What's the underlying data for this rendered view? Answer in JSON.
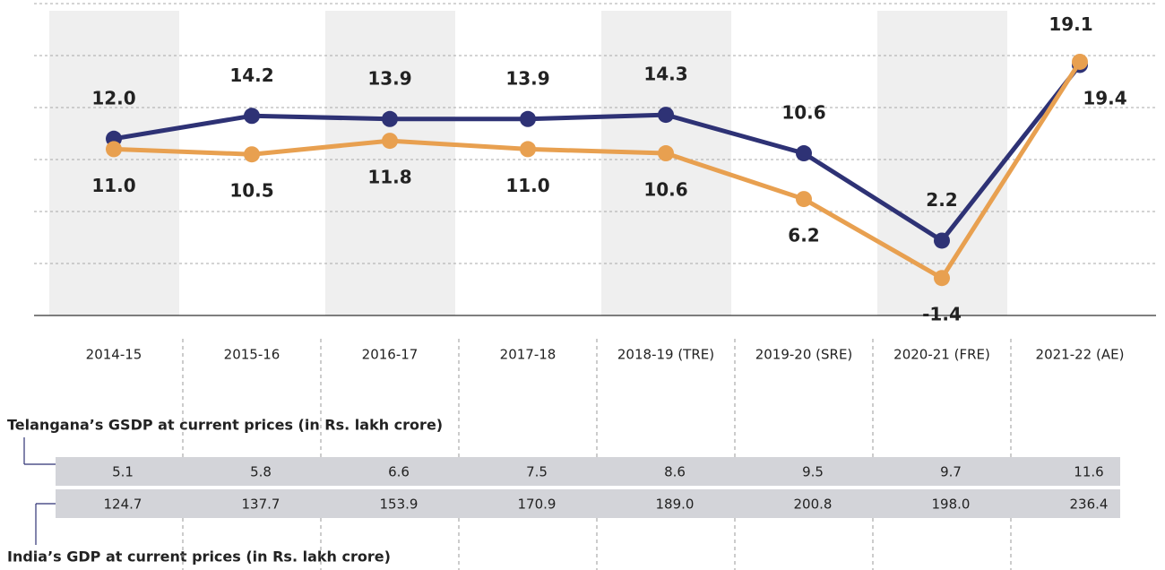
{
  "chart_data": {
    "type": "line",
    "categories": [
      "2014-15",
      "2015-16",
      "2016-17",
      "2017-18",
      "2018-19 (TRE)",
      "2019-20 (SRE)",
      "2020-21 (FRE)",
      "2021-22 (AE)"
    ],
    "series": [
      {
        "color": "#2e3275",
        "values": [
          12.0,
          14.2,
          13.9,
          13.9,
          14.3,
          10.6,
          2.2,
          19.1
        ],
        "value_labels": [
          "12.0",
          "14.2",
          "13.9",
          "13.9",
          "14.3",
          "10.6",
          "2.2",
          "19.1"
        ]
      },
      {
        "color": "#e8a050",
        "values": [
          11.0,
          10.5,
          11.8,
          11.0,
          10.6,
          6.2,
          -1.4,
          19.4
        ],
        "value_labels": [
          "11.0",
          "10.5",
          "11.8",
          "11.0",
          "10.6",
          "6.2",
          "-1.4",
          "19.4"
        ]
      }
    ],
    "ylim": [
      -5,
      25
    ],
    "yticks": [
      -5,
      0,
      5,
      10,
      15,
      20,
      25
    ],
    "grid": true
  },
  "table": {
    "rows": [
      {
        "label": "Telangana’s GSDP at current prices (in Rs. lakh crore)",
        "values": [
          "5.1",
          "5.8",
          "6.6",
          "7.5",
          "8.6",
          "9.5",
          "9.7",
          "11.6"
        ]
      },
      {
        "label": "India’s GDP at current prices (in Rs. lakh crore)",
        "values": [
          "124.7",
          "137.7",
          "153.9",
          "170.9",
          "189.0",
          "200.8",
          "198.0",
          "236.4"
        ]
      }
    ]
  }
}
